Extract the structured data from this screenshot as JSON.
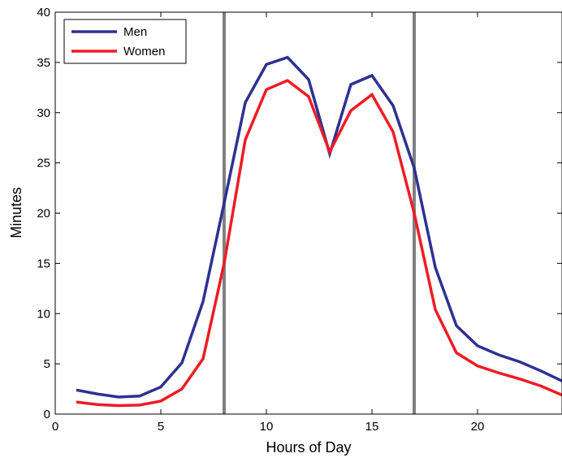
{
  "chart_data": {
    "type": "line",
    "xlabel": "Hours of Day",
    "ylabel": "Minutes",
    "xlim": [
      0,
      24
    ],
    "ylim": [
      0,
      40
    ],
    "xticks": [
      0,
      5,
      10,
      15,
      20
    ],
    "yticks": [
      0,
      5,
      10,
      15,
      20,
      25,
      30,
      35,
      40
    ],
    "grid": false,
    "legend_position": "top-left",
    "x": [
      1,
      2,
      3,
      4,
      5,
      6,
      7,
      8,
      9,
      10,
      11,
      12,
      13,
      14,
      15,
      16,
      17,
      18,
      19,
      20,
      21,
      22,
      23,
      24
    ],
    "series": [
      {
        "name": "Men",
        "color": "#2e3192",
        "values": [
          2.4,
          2.0,
          1.7,
          1.8,
          2.7,
          5.1,
          11.2,
          21.0,
          31.0,
          34.8,
          35.5,
          33.3,
          25.9,
          32.8,
          33.7,
          30.7,
          24.5,
          14.6,
          8.8,
          6.8,
          5.9,
          5.2,
          4.3,
          3.3
        ]
      },
      {
        "name": "Women",
        "color": "#ed1c24",
        "values": [
          1.2,
          0.95,
          0.85,
          0.9,
          1.3,
          2.5,
          5.5,
          15.0,
          27.3,
          32.3,
          33.2,
          31.6,
          26.1,
          30.2,
          31.8,
          28.1,
          20.0,
          10.4,
          6.1,
          4.8,
          4.1,
          3.5,
          2.8,
          1.9
        ]
      }
    ],
    "vertical_lines": [
      {
        "x": 8,
        "color": "#808080"
      },
      {
        "x": 17,
        "color": "#808080"
      }
    ]
  }
}
